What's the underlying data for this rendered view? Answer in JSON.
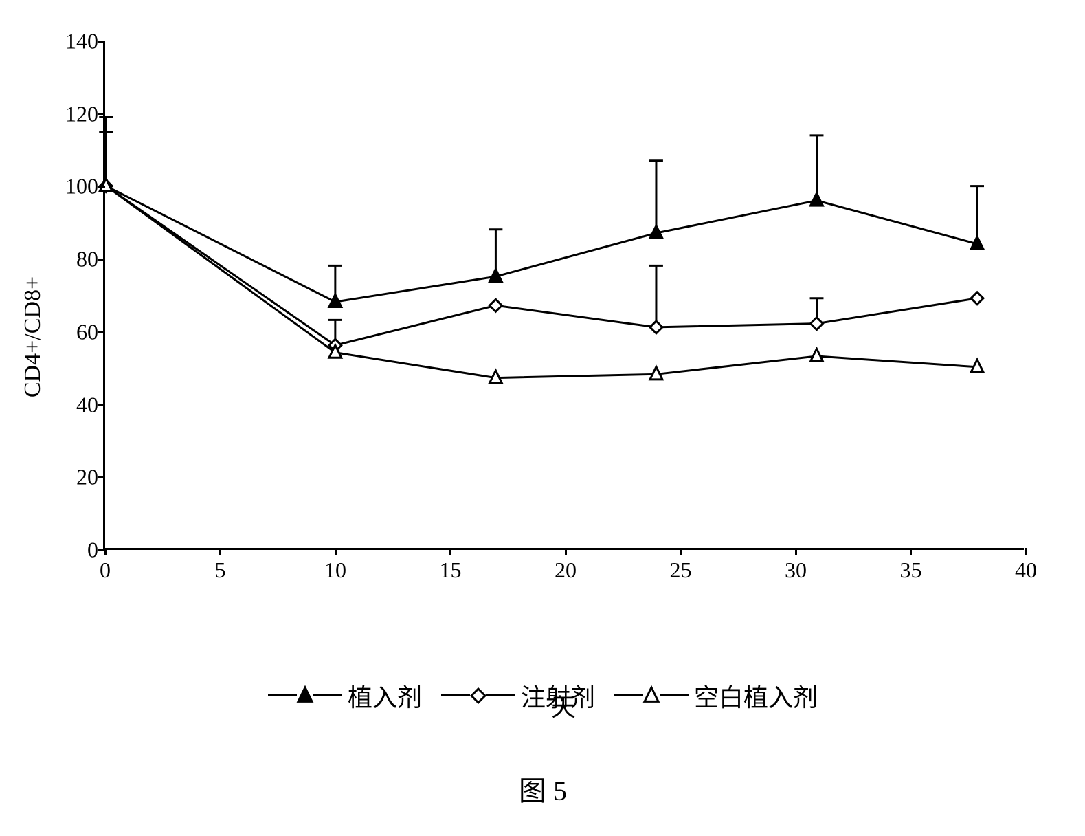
{
  "chart": {
    "type": "line-with-error-bars",
    "ylabel": "CD4+/CD8+",
    "xlabel": "天",
    "caption": "图 5",
    "background_color": "#ffffff",
    "axis_color": "#000000",
    "axis_line_width": 3,
    "tick_fontsize": 32,
    "label_fontsize": 36,
    "caption_fontsize": 40,
    "xlim": [
      0,
      40
    ],
    "ylim": [
      0,
      140
    ],
    "xtick_step": 5,
    "ytick_step": 20,
    "xtick_values": [
      0,
      5,
      10,
      15,
      20,
      25,
      30,
      35,
      40
    ],
    "ytick_values": [
      0,
      20,
      40,
      60,
      80,
      100,
      120,
      140
    ],
    "series_line_width": 3,
    "marker_size": 18,
    "error_cap_width": 20,
    "series": [
      {
        "key": "implant",
        "label": "植入剂",
        "marker": "triangle-up-filled",
        "fill": "#000000",
        "stroke": "#000000",
        "x": [
          0,
          10,
          17,
          24,
          31,
          38
        ],
        "y": [
          100,
          68,
          75,
          87,
          96,
          84
        ],
        "err": [
          19,
          10,
          13,
          20,
          18,
          16
        ]
      },
      {
        "key": "injection",
        "label": "注射剂",
        "marker": "diamond-open",
        "fill": "#ffffff",
        "stroke": "#000000",
        "x": [
          0,
          10,
          17,
          24,
          31,
          38
        ],
        "y": [
          100,
          56,
          67,
          61,
          62,
          69
        ],
        "err": [
          15,
          7,
          0,
          17,
          7,
          0
        ]
      },
      {
        "key": "blank",
        "label": "空白植入剂",
        "marker": "triangle-up-open",
        "fill": "#ffffff",
        "stroke": "#000000",
        "x": [
          0,
          10,
          17,
          24,
          31,
          38
        ],
        "y": [
          100,
          54,
          47,
          48,
          53,
          50
        ],
        "err": [
          0,
          0,
          0,
          0,
          0,
          0
        ]
      }
    ]
  },
  "legend": {
    "items": [
      {
        "label": "植入剂"
      },
      {
        "label": "注射剂"
      },
      {
        "label": "空白植入剂"
      }
    ]
  }
}
